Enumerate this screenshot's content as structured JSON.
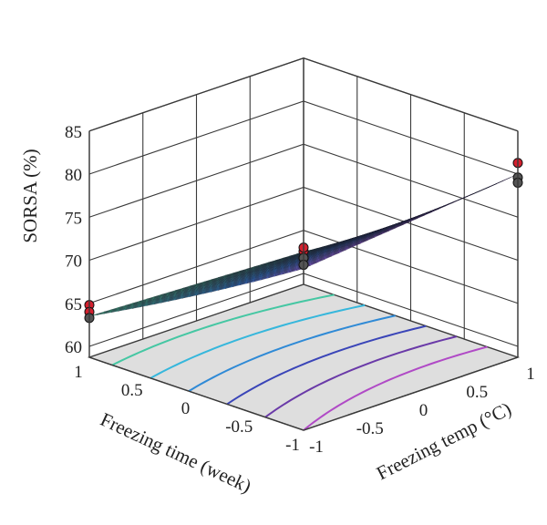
{
  "chart_data": {
    "type": "surface3d",
    "title": "",
    "xlabel": "Freezing temp (°C)",
    "ylabel": "Freezing time (week)",
    "zlabel": "SORSA (%)",
    "x_ticks": [
      "-1",
      "-0.5",
      "0",
      "0.5",
      "1"
    ],
    "y_ticks": [
      "-1",
      "-0.5",
      "0",
      "0.5",
      "1"
    ],
    "z_ticks": [
      "60",
      "65",
      "70",
      "75",
      "80",
      "85"
    ],
    "xlim": [
      -1,
      1
    ],
    "ylim": [
      -1,
      1
    ],
    "zlim": [
      60,
      85
    ],
    "surface_corners": [
      {
        "x": -1,
        "y": 1,
        "z": 63.5
      },
      {
        "x": -1,
        "y": -1,
        "z": 62.5
      },
      {
        "x": 1,
        "y": 1,
        "z": 77.5
      },
      {
        "x": 1,
        "y": -1,
        "z": 80
      }
    ],
    "design_points": [
      {
        "x": -1,
        "y": 1,
        "z": 64.8,
        "side": "above"
      },
      {
        "x": -1,
        "y": 1,
        "z": 64.0,
        "side": "above"
      },
      {
        "x": -1,
        "y": 1,
        "z": 63.3,
        "side": "below"
      },
      {
        "x": 1,
        "y": 1,
        "z": 79.5,
        "side": "above"
      },
      {
        "x": 1,
        "y": 1,
        "z": 78.7,
        "side": "above"
      },
      {
        "x": -1,
        "y": -1,
        "z": 63.0,
        "side": "above"
      },
      {
        "x": -1,
        "y": -1,
        "z": 61.8,
        "side": "below"
      },
      {
        "x": -1,
        "y": -1,
        "z": 61.0,
        "side": "below"
      },
      {
        "x": 1,
        "y": -1,
        "z": 81.3,
        "side": "above"
      },
      {
        "x": 1,
        "y": -1,
        "z": 79.6,
        "side": "below"
      },
      {
        "x": 1,
        "y": -1,
        "z": 79.0,
        "side": "below"
      }
    ],
    "contour_levels": [
      65,
      67.5,
      70,
      72.5,
      75,
      77.5
    ],
    "grid": true,
    "colors": {
      "low": "#49c97a",
      "mid": "#2f7ed6",
      "high": "#c445cf",
      "floor": "#dedede",
      "point_above": "#d4202e",
      "point_below": "#555555"
    }
  }
}
